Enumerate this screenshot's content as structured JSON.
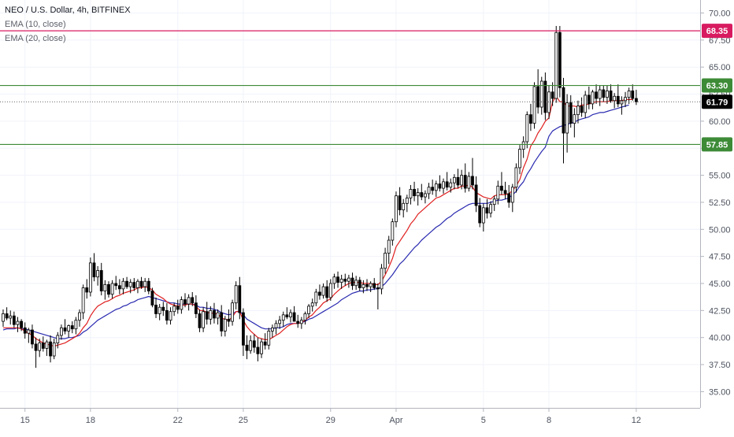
{
  "legend": {
    "symbol": "NEO / U.S. Dollar, 4h, BITFINEX",
    "ema10": "EMA (10, close)",
    "ema20": "EMA (20, close)"
  },
  "colors": {
    "up_fill": "#ffffff",
    "down_fill": "#000000",
    "candle_outline": "#000000",
    "ema10": "#e02020",
    "ema20": "#2a2ab0",
    "resistance_line": "#d81b60",
    "support_line": "#3d8b37",
    "current_price_label": "#000000",
    "grid": "#f0f3fa"
  },
  "chart_data": {
    "type": "candlestick",
    "title": "NEO / U.S. Dollar, 4h, BITFINEX",
    "ylim": [
      33.5,
      71.2
    ],
    "y_ticks": [
      "35.00",
      "37.50",
      "40.00",
      "42.50",
      "45.00",
      "47.50",
      "50.00",
      "52.50",
      "55.00",
      "57.50",
      "60.00",
      "62.50",
      "65.00",
      "67.50",
      "70.00"
    ],
    "x_ticks": [
      "15",
      "18",
      "22",
      "25",
      "29",
      "Apr",
      "5",
      "8",
      "12"
    ],
    "x_tick_index": [
      6,
      24,
      48,
      66,
      90,
      108,
      132,
      150,
      174
    ],
    "horizontal_levels": [
      {
        "value": 68.35,
        "label": "68.35",
        "kind": "resistance"
      },
      {
        "value": 63.3,
        "label": "63.30",
        "kind": "support"
      },
      {
        "value": 57.85,
        "label": "57.85",
        "kind": "support"
      }
    ],
    "current_price": {
      "value": 61.79,
      "label": "61.79"
    },
    "candles": [
      [
        41.5,
        42.6,
        41.0,
        42.2
      ],
      [
        42.2,
        42.8,
        41.6,
        41.8
      ],
      [
        41.8,
        42.5,
        41.2,
        42.0
      ],
      [
        42.0,
        42.4,
        40.9,
        41.2
      ],
      [
        41.2,
        41.9,
        40.5,
        41.5
      ],
      [
        41.5,
        41.7,
        40.6,
        40.9
      ],
      [
        40.9,
        41.4,
        39.9,
        40.4
      ],
      [
        40.4,
        40.9,
        39.5,
        40.7
      ],
      [
        40.7,
        41.2,
        39.0,
        39.4
      ],
      [
        39.4,
        40.0,
        37.2,
        38.8
      ],
      [
        38.8,
        39.9,
        38.2,
        39.5
      ],
      [
        39.5,
        40.1,
        38.7,
        39.0
      ],
      [
        39.0,
        39.8,
        38.3,
        39.6
      ],
      [
        39.6,
        40.2,
        37.7,
        38.3
      ],
      [
        38.3,
        39.9,
        38.0,
        39.5
      ],
      [
        39.5,
        40.5,
        39.0,
        40.2
      ],
      [
        40.2,
        41.2,
        39.8,
        40.9
      ],
      [
        40.9,
        41.7,
        40.3,
        40.6
      ],
      [
        40.6,
        41.2,
        40.0,
        41.1
      ],
      [
        41.1,
        41.5,
        40.4,
        40.8
      ],
      [
        40.8,
        41.9,
        40.3,
        41.6
      ],
      [
        41.6,
        42.6,
        41.0,
        42.3
      ],
      [
        42.3,
        44.9,
        41.7,
        44.6
      ],
      [
        44.6,
        45.4,
        43.6,
        44.2
      ],
      [
        44.2,
        47.4,
        43.8,
        46.9
      ],
      [
        46.9,
        47.8,
        45.2,
        45.6
      ],
      [
        45.6,
        46.6,
        44.8,
        46.2
      ],
      [
        46.2,
        46.9,
        43.9,
        44.3
      ],
      [
        44.3,
        45.3,
        43.5,
        44.9
      ],
      [
        44.9,
        45.2,
        43.7,
        44.0
      ],
      [
        44.0,
        45.3,
        43.6,
        45.0
      ],
      [
        45.0,
        45.7,
        44.4,
        44.8
      ],
      [
        44.8,
        45.4,
        44.0,
        44.5
      ],
      [
        44.5,
        45.5,
        44.0,
        45.2
      ],
      [
        45.2,
        45.6,
        44.5,
        44.7
      ],
      [
        44.7,
        45.4,
        44.1,
        45.1
      ],
      [
        45.1,
        45.5,
        44.3,
        44.6
      ],
      [
        44.6,
        45.4,
        44.1,
        45.2
      ],
      [
        45.2,
        45.6,
        44.5,
        44.7
      ],
      [
        44.7,
        45.5,
        44.2,
        45.2
      ],
      [
        45.2,
        45.5,
        44.0,
        44.3
      ],
      [
        44.3,
        44.6,
        42.8,
        43.0
      ],
      [
        43.0,
        43.7,
        41.8,
        42.2
      ],
      [
        42.2,
        43.1,
        41.6,
        42.8
      ],
      [
        42.8,
        43.3,
        42.0,
        42.5
      ],
      [
        42.5,
        43.2,
        41.2,
        41.6
      ],
      [
        41.6,
        42.8,
        41.2,
        42.4
      ],
      [
        42.4,
        43.2,
        42.0,
        42.9
      ],
      [
        42.9,
        43.5,
        42.2,
        42.6
      ],
      [
        42.6,
        43.8,
        42.2,
        43.5
      ],
      [
        43.5,
        44.1,
        42.8,
        43.1
      ],
      [
        43.1,
        44.0,
        42.5,
        43.7
      ],
      [
        43.7,
        44.2,
        42.9,
        43.2
      ],
      [
        43.2,
        43.9,
        41.8,
        42.2
      ],
      [
        42.2,
        42.6,
        40.5,
        40.9
      ],
      [
        40.9,
        42.8,
        40.5,
        42.4
      ],
      [
        42.4,
        43.3,
        41.2,
        41.7
      ],
      [
        41.7,
        42.9,
        41.2,
        42.5
      ],
      [
        42.5,
        43.2,
        41.3,
        41.8
      ],
      [
        41.8,
        42.6,
        41.2,
        42.3
      ],
      [
        42.3,
        43.0,
        40.1,
        40.6
      ],
      [
        40.6,
        42.0,
        40.1,
        41.7
      ],
      [
        41.7,
        42.6,
        41.0,
        41.5
      ],
      [
        41.5,
        43.5,
        41.1,
        43.2
      ],
      [
        43.2,
        45.2,
        42.6,
        44.8
      ],
      [
        44.8,
        45.6,
        41.7,
        42.3
      ],
      [
        42.3,
        42.7,
        38.3,
        39.3
      ],
      [
        39.3,
        40.2,
        38.0,
        38.8
      ],
      [
        38.8,
        40.2,
        38.5,
        39.7
      ],
      [
        39.7,
        40.3,
        38.6,
        39.1
      ],
      [
        39.1,
        40.0,
        37.8,
        38.5
      ],
      [
        38.5,
        39.9,
        38.1,
        39.6
      ],
      [
        39.6,
        40.4,
        38.9,
        39.3
      ],
      [
        39.3,
        40.9,
        38.9,
        40.6
      ],
      [
        40.6,
        41.2,
        40.0,
        40.9
      ],
      [
        40.9,
        41.6,
        40.3,
        41.3
      ],
      [
        41.3,
        42.0,
        40.8,
        41.6
      ],
      [
        41.6,
        42.4,
        41.0,
        42.1
      ],
      [
        42.1,
        42.8,
        41.7,
        41.9
      ],
      [
        41.9,
        42.6,
        41.4,
        42.3
      ],
      [
        42.3,
        42.9,
        41.8,
        41.5
      ],
      [
        41.5,
        42.1,
        40.9,
        41.3
      ],
      [
        41.3,
        41.9,
        40.8,
        41.6
      ],
      [
        41.6,
        42.4,
        41.2,
        42.2
      ],
      [
        42.2,
        43.1,
        41.8,
        42.9
      ],
      [
        42.9,
        43.6,
        42.4,
        43.2
      ],
      [
        43.2,
        44.5,
        42.9,
        44.2
      ],
      [
        44.2,
        44.9,
        43.5,
        43.9
      ],
      [
        43.9,
        45.0,
        43.6,
        44.7
      ],
      [
        44.7,
        45.3,
        43.3,
        43.7
      ],
      [
        43.7,
        45.4,
        43.4,
        45.0
      ],
      [
        45.0,
        45.9,
        44.5,
        45.6
      ],
      [
        45.6,
        46.1,
        44.6,
        45.1
      ],
      [
        45.1,
        45.8,
        44.5,
        45.4
      ],
      [
        45.4,
        45.9,
        44.8,
        45.2
      ],
      [
        45.2,
        45.8,
        44.6,
        45.5
      ],
      [
        45.5,
        46.0,
        44.4,
        44.8
      ],
      [
        44.8,
        45.7,
        44.4,
        45.3
      ],
      [
        45.3,
        45.6,
        44.3,
        44.6
      ],
      [
        44.6,
        45.3,
        44.1,
        44.9
      ],
      [
        44.9,
        45.4,
        44.3,
        44.7
      ],
      [
        44.7,
        45.2,
        44.2,
        45.0
      ],
      [
        45.0,
        45.5,
        44.4,
        44.6
      ],
      [
        44.6,
        45.0,
        42.6,
        44.5
      ],
      [
        44.5,
        46.8,
        44.0,
        46.4
      ],
      [
        46.4,
        48.3,
        45.9,
        47.8
      ],
      [
        47.8,
        49.4,
        46.8,
        49.0
      ],
      [
        49.0,
        51.0,
        48.5,
        50.7
      ],
      [
        50.7,
        53.5,
        50.2,
        53.1
      ],
      [
        53.1,
        53.9,
        51.3,
        51.8
      ],
      [
        51.8,
        52.8,
        51.1,
        52.4
      ],
      [
        52.4,
        53.2,
        51.6,
        52.9
      ],
      [
        52.9,
        54.1,
        52.3,
        53.7
      ],
      [
        53.7,
        54.4,
        52.6,
        53.1
      ],
      [
        53.1,
        53.8,
        52.2,
        53.4
      ],
      [
        53.4,
        54.2,
        52.7,
        53.0
      ],
      [
        53.0,
        53.6,
        52.4,
        53.3
      ],
      [
        53.3,
        54.3,
        52.8,
        53.9
      ],
      [
        53.9,
        54.6,
        53.2,
        53.6
      ],
      [
        53.6,
        54.5,
        53.0,
        54.2
      ],
      [
        54.2,
        55.0,
        53.5,
        53.8
      ],
      [
        53.8,
        54.7,
        53.3,
        54.4
      ],
      [
        54.4,
        55.3,
        53.6,
        53.9
      ],
      [
        53.9,
        54.7,
        53.4,
        54.3
      ],
      [
        54.3,
        55.1,
        53.7,
        54.8
      ],
      [
        54.8,
        55.6,
        53.8,
        54.1
      ],
      [
        54.1,
        55.5,
        53.7,
        55.0
      ],
      [
        55.0,
        56.1,
        53.4,
        53.8
      ],
      [
        53.8,
        55.3,
        53.5,
        54.9
      ],
      [
        54.9,
        56.6,
        53.7,
        54.1
      ],
      [
        54.1,
        54.9,
        51.6,
        52.2
      ],
      [
        52.2,
        52.9,
        50.2,
        50.6
      ],
      [
        50.6,
        52.4,
        49.8,
        52.0
      ],
      [
        52.0,
        52.8,
        51.0,
        51.5
      ],
      [
        51.5,
        52.6,
        51.1,
        52.3
      ],
      [
        52.3,
        53.1,
        51.7,
        52.8
      ],
      [
        52.8,
        54.5,
        52.3,
        54.0
      ],
      [
        54.0,
        55.3,
        53.2,
        53.6
      ],
      [
        53.6,
        54.4,
        52.8,
        53.3
      ],
      [
        53.3,
        54.1,
        52.0,
        52.5
      ],
      [
        52.5,
        54.2,
        51.6,
        53.9
      ],
      [
        53.9,
        56.1,
        53.4,
        55.7
      ],
      [
        55.7,
        57.8,
        55.1,
        57.4
      ],
      [
        57.4,
        58.6,
        56.6,
        58.1
      ],
      [
        58.1,
        60.9,
        57.5,
        60.6
      ],
      [
        60.6,
        61.6,
        59.1,
        59.8
      ],
      [
        59.8,
        63.6,
        59.3,
        63.2
      ],
      [
        63.2,
        64.8,
        60.7,
        61.3
      ],
      [
        61.3,
        64.1,
        60.6,
        63.7
      ],
      [
        63.7,
        64.5,
        60.1,
        60.8
      ],
      [
        60.8,
        63.3,
        60.2,
        62.7
      ],
      [
        62.7,
        63.6,
        61.4,
        62.1
      ],
      [
        62.1,
        68.8,
        61.7,
        68.2
      ],
      [
        68.2,
        68.8,
        62.2,
        63.1
      ],
      [
        63.1,
        64.0,
        56.1,
        58.9
      ],
      [
        58.9,
        62.5,
        57.1,
        61.7
      ],
      [
        61.7,
        62.4,
        59.4,
        59.8
      ],
      [
        59.8,
        61.2,
        58.5,
        60.6
      ],
      [
        60.6,
        61.9,
        59.8,
        61.4
      ],
      [
        61.4,
        62.2,
        60.4,
        60.8
      ],
      [
        60.8,
        62.8,
        60.3,
        62.4
      ],
      [
        62.4,
        63.2,
        61.1,
        61.6
      ],
      [
        61.6,
        62.9,
        61.1,
        62.7
      ],
      [
        62.7,
        63.4,
        61.6,
        62.1
      ],
      [
        62.1,
        63.3,
        61.4,
        62.9
      ],
      [
        62.9,
        63.3,
        61.8,
        62.2
      ],
      [
        62.2,
        63.3,
        61.6,
        62.8
      ],
      [
        62.8,
        63.4,
        61.7,
        61.9
      ],
      [
        61.9,
        62.6,
        61.2,
        62.3
      ],
      [
        62.3,
        63.4,
        61.3,
        61.6
      ],
      [
        61.6,
        62.3,
        60.6,
        61.9
      ],
      [
        61.9,
        62.7,
        61.3,
        62.2
      ],
      [
        62.2,
        63.1,
        61.6,
        62.8
      ],
      [
        62.8,
        63.4,
        61.9,
        62.1
      ],
      [
        62.1,
        62.9,
        61.5,
        61.79
      ]
    ],
    "ema10": [
      40.9,
      40.9,
      40.9,
      40.9,
      40.9,
      40.8,
      40.6,
      40.4,
      40.2,
      39.9,
      39.7,
      39.5,
      39.4,
      39.3,
      39.2,
      39.3,
      39.4,
      39.5,
      39.7,
      39.9,
      40.1,
      40.4,
      40.9,
      41.3,
      42.0,
      42.5,
      42.9,
      43.1,
      43.3,
      43.4,
      43.6,
      43.8,
      43.9,
      44.1,
      44.2,
      44.3,
      44.4,
      44.6,
      44.6,
      44.7,
      44.6,
      44.4,
      44.0,
      43.8,
      43.6,
      43.3,
      43.1,
      43.0,
      42.9,
      43.0,
      43.0,
      43.1,
      43.1,
      42.9,
      42.5,
      42.5,
      42.3,
      42.3,
      42.2,
      42.2,
      41.8,
      41.7,
      41.6,
      41.9,
      42.4,
      42.4,
      41.6,
      41.0,
      40.6,
      40.3,
      40.0,
      39.9,
      39.8,
      39.8,
      40.0,
      40.2,
      40.4,
      40.7,
      41.0,
      41.2,
      41.3,
      41.3,
      41.4,
      41.6,
      41.9,
      42.1,
      42.5,
      42.8,
      43.2,
      43.4,
      43.6,
      44.0,
      44.3,
      44.6,
      44.8,
      45.0,
      45.1,
      45.1,
      45.1,
      45.0,
      45.0,
      45.0,
      44.9,
      44.9,
      45.2,
      45.8,
      46.5,
      47.3,
      48.4,
      48.9,
      49.4,
      49.9,
      50.5,
      50.9,
      51.4,
      51.7,
      52.0,
      52.3,
      52.6,
      52.9,
      53.0,
      53.2,
      53.4,
      53.6,
      53.8,
      53.8,
      54.0,
      54.0,
      54.1,
      53.9,
      53.4,
      53.2,
      53.0,
      52.9,
      52.8,
      53.1,
      53.2,
      53.2,
      53.2,
      53.3,
      53.6,
      54.0,
      54.6,
      55.7,
      56.5,
      57.7,
      58.2,
      58.9,
      59.4,
      60.0,
      60.3,
      61.8,
      62.3,
      61.8,
      61.8,
      61.4,
      61.4,
      61.4,
      61.3,
      61.5,
      61.5,
      61.6,
      61.7,
      61.8,
      61.8,
      61.8,
      61.8,
      61.9,
      61.9,
      61.9,
      61.9,
      62.0,
      62.0,
      62.0
    ],
    "ema20": [
      40.7,
      40.8,
      40.8,
      40.8,
      40.9,
      40.8,
      40.8,
      40.7,
      40.6,
      40.5,
      40.4,
      40.3,
      40.2,
      40.1,
      40.0,
      39.9,
      39.9,
      39.9,
      40.0,
      40.0,
      40.1,
      40.2,
      40.5,
      40.7,
      41.0,
      41.3,
      41.6,
      41.8,
      42.0,
      42.2,
      42.4,
      42.6,
      42.7,
      42.9,
      43.0,
      43.2,
      43.3,
      43.5,
      43.6,
      43.7,
      43.8,
      43.7,
      43.6,
      43.5,
      43.4,
      43.3,
      43.2,
      43.2,
      43.1,
      43.1,
      43.1,
      43.1,
      43.1,
      43.0,
      42.8,
      42.8,
      42.7,
      42.7,
      42.6,
      42.5,
      42.3,
      42.2,
      42.1,
      42.2,
      42.4,
      42.4,
      42.1,
      41.7,
      41.5,
      41.3,
      41.1,
      40.9,
      40.8,
      40.8,
      40.8,
      40.9,
      40.9,
      41.0,
      41.2,
      41.3,
      41.3,
      41.3,
      41.4,
      41.5,
      41.7,
      41.8,
      42.0,
      42.2,
      42.4,
      42.6,
      42.8,
      43.0,
      43.2,
      43.5,
      43.7,
      43.9,
      44.1,
      44.2,
      44.3,
      44.3,
      44.4,
      44.4,
      44.5,
      44.5,
      44.7,
      45.0,
      45.4,
      45.8,
      46.3,
      46.8,
      47.1,
      47.5,
      47.9,
      48.3,
      48.6,
      49.0,
      49.3,
      49.6,
      49.9,
      50.2,
      50.4,
      50.7,
      51.0,
      51.2,
      51.5,
      51.7,
      51.9,
      52.1,
      52.3,
      52.4,
      52.4,
      52.4,
      52.4,
      52.4,
      52.5,
      52.6,
      52.7,
      52.7,
      52.8,
      52.9,
      53.2,
      53.5,
      54.0,
      54.4,
      55.1,
      55.6,
      56.2,
      56.7,
      57.2,
      57.6,
      58.6,
      59.1,
      59.3,
      59.5,
      59.6,
      59.7,
      59.8,
      59.9,
      60.1,
      60.2,
      60.3,
      60.4,
      60.6,
      60.7,
      60.8,
      60.8,
      60.9,
      61.0,
      61.1,
      61.2,
      61.3,
      61.4,
      61.5
    ]
  }
}
